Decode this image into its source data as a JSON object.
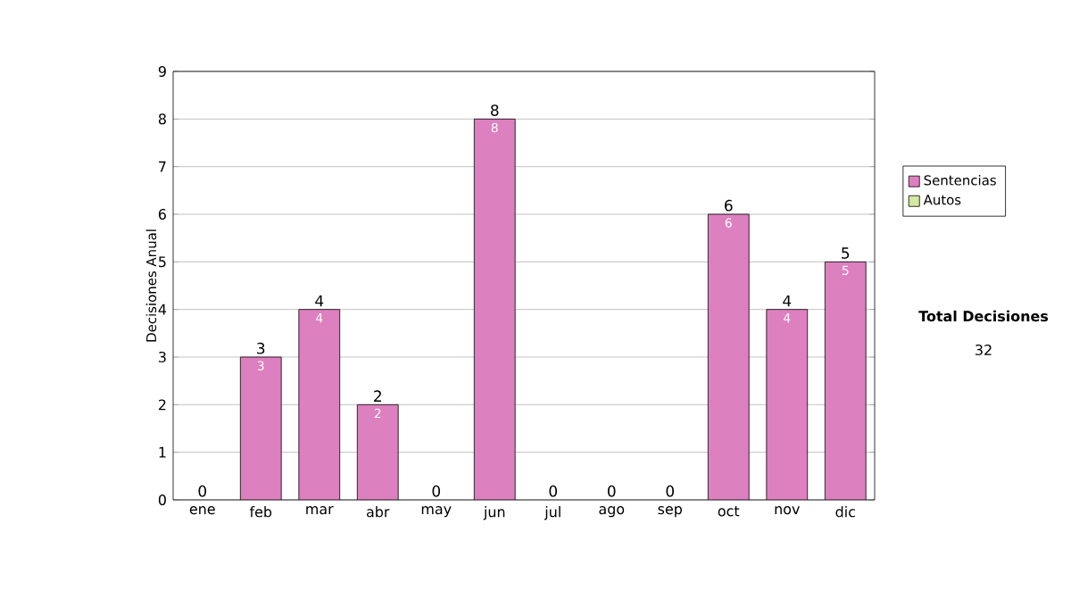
{
  "chart_data": {
    "type": "bar",
    "stacked": true,
    "ylabel": "Decisiones Anual",
    "categories": [
      "ene",
      "feb",
      "mar",
      "abr",
      "may",
      "jun",
      "jul",
      "ago",
      "sep",
      "oct",
      "nov",
      "dic"
    ],
    "series": [
      {
        "name": "Sentencias",
        "color": "#dd80bf",
        "values": [
          0,
          3,
          4,
          2,
          0,
          8,
          0,
          0,
          0,
          6,
          4,
          5
        ],
        "value_labels": [
          null,
          "3",
          "4",
          "2",
          null,
          "8",
          null,
          null,
          null,
          "6",
          "4",
          "5"
        ]
      },
      {
        "name": "Autos",
        "color": "#d4e8a0",
        "values": [
          0,
          0,
          0,
          0,
          0,
          0,
          0,
          0,
          0,
          0,
          0,
          0
        ]
      }
    ],
    "totals": [
      "0",
      "3",
      "4",
      "2",
      "0",
      "8",
      "0",
      "0",
      "0",
      "6",
      "4",
      "5"
    ],
    "ylim": [
      0,
      9
    ],
    "yticks": [
      0,
      1,
      2,
      3,
      4,
      5,
      6,
      7,
      8,
      9
    ],
    "grid": "y",
    "legend": "right",
    "annotations": [
      "Total Decisiones",
      "32"
    ]
  }
}
